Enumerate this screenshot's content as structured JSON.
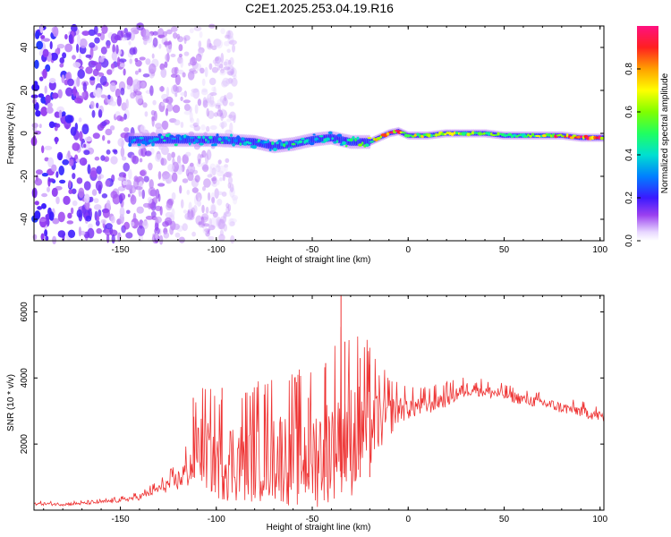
{
  "figure": {
    "title": "C2E1.2025.253.04.19.R16"
  },
  "chart_data": [
    {
      "type": "heatmap",
      "xlabel": "Height of straight line (km)",
      "ylabel": "Frequency (Hz)",
      "xlim": [
        -195,
        102
      ],
      "ylim": [
        -50,
        50
      ],
      "xticks": [
        -150,
        -100,
        -50,
        0,
        50,
        100
      ],
      "xtick_labels": [
        "-150",
        "-100",
        "-50",
        "0",
        "50",
        "100"
      ],
      "yticks": [
        -40,
        -20,
        0,
        20,
        40
      ],
      "ytick_labels": [
        "-40",
        "-20",
        "0",
        "20",
        "40"
      ],
      "colorbar": {
        "label": "Normalized spectral amplitude",
        "range": [
          0,
          1
        ],
        "ticks": [
          0.0,
          0.2,
          0.4,
          0.6,
          0.8
        ],
        "tick_labels": [
          "0.0",
          "0.2",
          "0.4",
          "0.6",
          "0.8"
        ]
      },
      "ridge": {
        "description_points_x": [
          -140,
          -120,
          -100,
          -80,
          -70,
          -60,
          -50,
          -40,
          -30,
          -20,
          -15,
          -10,
          -5,
          0,
          10,
          20,
          30,
          40,
          50,
          60,
          70,
          80,
          90,
          100
        ],
        "frequency_hz": [
          -3,
          -3,
          -3,
          -4,
          -6,
          -5,
          -3,
          -2,
          -4,
          -4,
          -2,
          0,
          1,
          -1,
          -1,
          0,
          0,
          0,
          -1,
          -1,
          -1,
          -1,
          -2,
          -2
        ],
        "amplitude": [
          0.35,
          0.4,
          0.4,
          0.4,
          0.45,
          0.45,
          0.4,
          0.4,
          0.5,
          0.6,
          0.75,
          0.9,
          0.95,
          0.7,
          0.65,
          0.65,
          0.6,
          0.55,
          0.55,
          0.6,
          0.7,
          0.9,
          0.95,
          0.95
        ]
      },
      "noise_region_x": [
        -195,
        -130
      ]
    },
    {
      "type": "line",
      "xlabel": "Height of straight line (km)",
      "ylabel": "SNR (10 * v/v)",
      "xlim": [
        -195,
        102
      ],
      "ylim": [
        0,
        6500
      ],
      "xticks": [
        -150,
        -100,
        -50,
        0,
        50,
        100
      ],
      "xtick_labels": [
        "-150",
        "-100",
        "-50",
        "0",
        "50",
        "100"
      ],
      "yticks": [
        2000,
        4000,
        6000
      ],
      "ytick_labels": [
        "2000",
        "4000",
        "6000"
      ],
      "color": "#ee3333",
      "x": [
        -195,
        -180,
        -165,
        -150,
        -140,
        -130,
        -120,
        -112,
        -110,
        -100,
        -90,
        -80,
        -70,
        -60,
        -50,
        -40,
        -35,
        -30,
        -25,
        -20,
        -15,
        -10,
        -5,
        0,
        10,
        20,
        30,
        35,
        40,
        50,
        60,
        70,
        80,
        90,
        100,
        102
      ],
      "y": [
        200,
        180,
        220,
        300,
        400,
        650,
        900,
        1400,
        2000,
        1500,
        1500,
        1600,
        1700,
        1600,
        1600,
        2000,
        2500,
        2200,
        2400,
        2600,
        2700,
        2900,
        3100,
        3100,
        3200,
        3400,
        3650,
        3700,
        3600,
        3500,
        3350,
        3250,
        3100,
        3000,
        2850,
        2800
      ],
      "spike_amplitude": [
        60,
        60,
        60,
        80,
        120,
        200,
        400,
        900,
        1400,
        1500,
        1600,
        1700,
        1800,
        1900,
        2000,
        2200,
        2500,
        2300,
        2200,
        1800,
        1200,
        900,
        600,
        450,
        400,
        350,
        300,
        280,
        260,
        240,
        220,
        220,
        220,
        220,
        220,
        220
      ],
      "spikes": [
        [
          -112,
          3400
        ],
        [
          -97,
          3700
        ],
        [
          -75,
          3500
        ],
        [
          -52,
          3400
        ],
        [
          -43,
          4450
        ],
        [
          -35,
          6500
        ],
        [
          -33,
          5100
        ],
        [
          -25,
          4600
        ],
        [
          -20,
          4400
        ]
      ]
    }
  ]
}
